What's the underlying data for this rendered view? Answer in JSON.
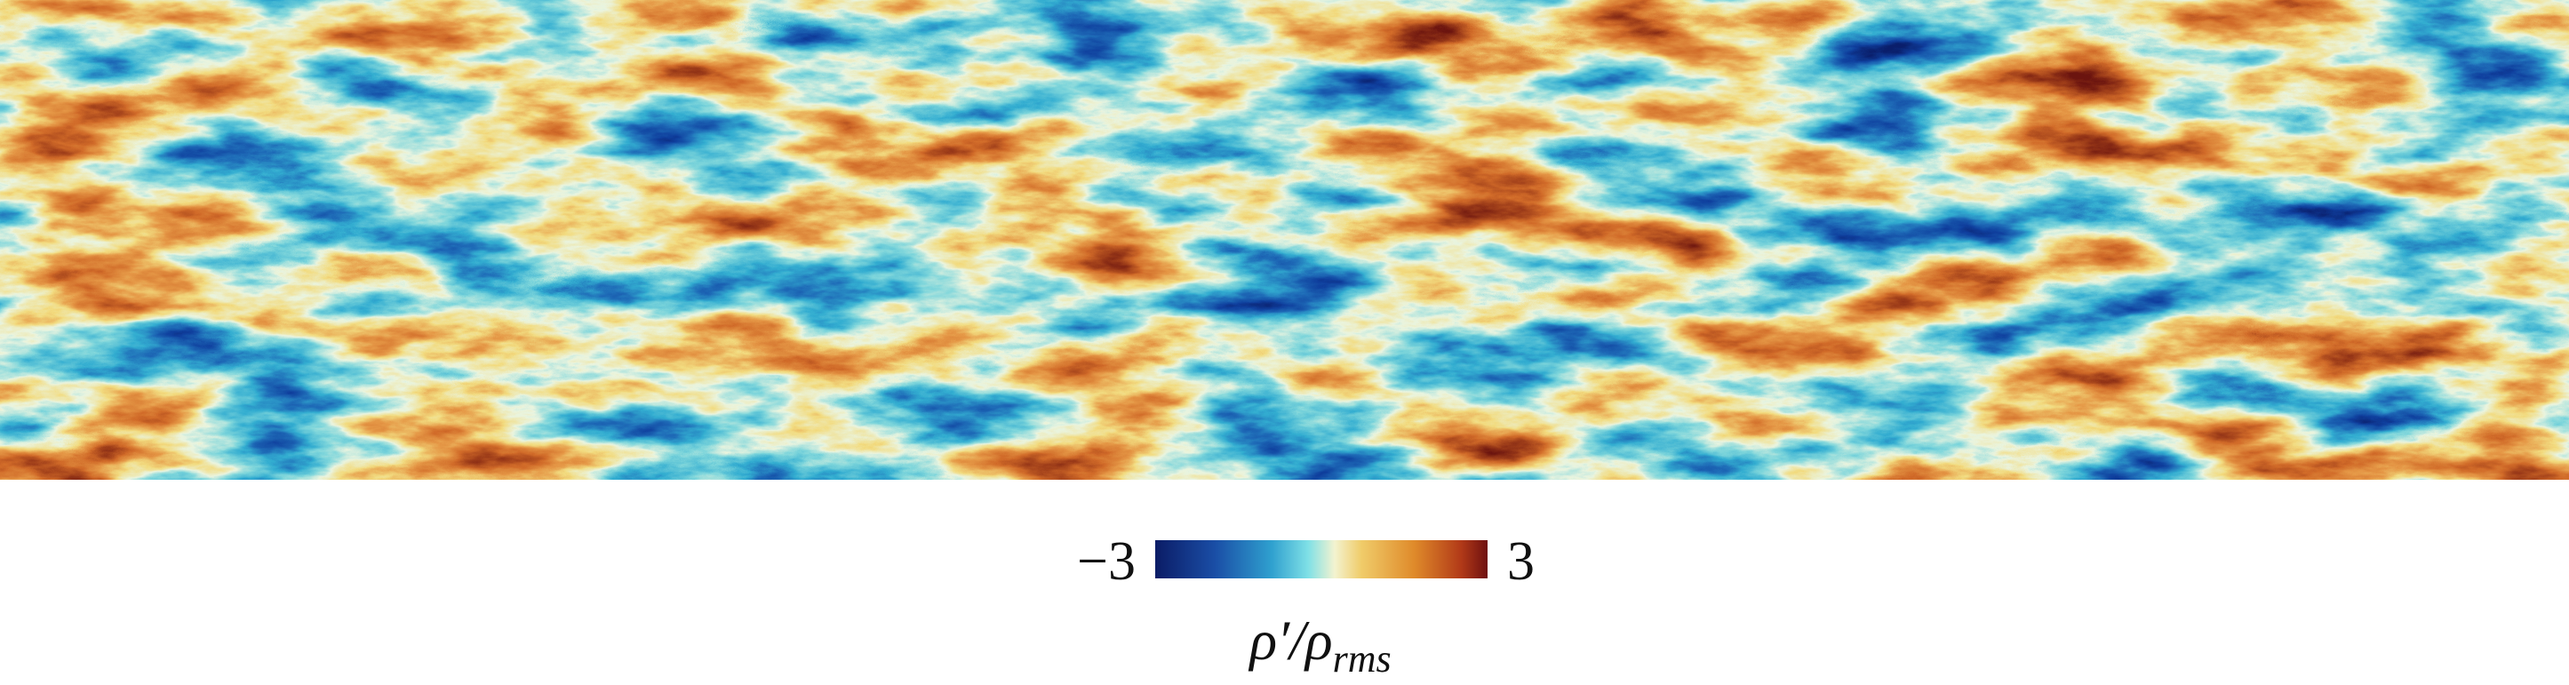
{
  "colorbar": {
    "lim": [
      -3,
      3
    ],
    "ticks": [
      {
        "value": -3,
        "label": "−3"
      },
      {
        "value": 3,
        "label": "3"
      }
    ],
    "label": {
      "main": "ρ′/ρ",
      "sub": "rms"
    }
  }
}
